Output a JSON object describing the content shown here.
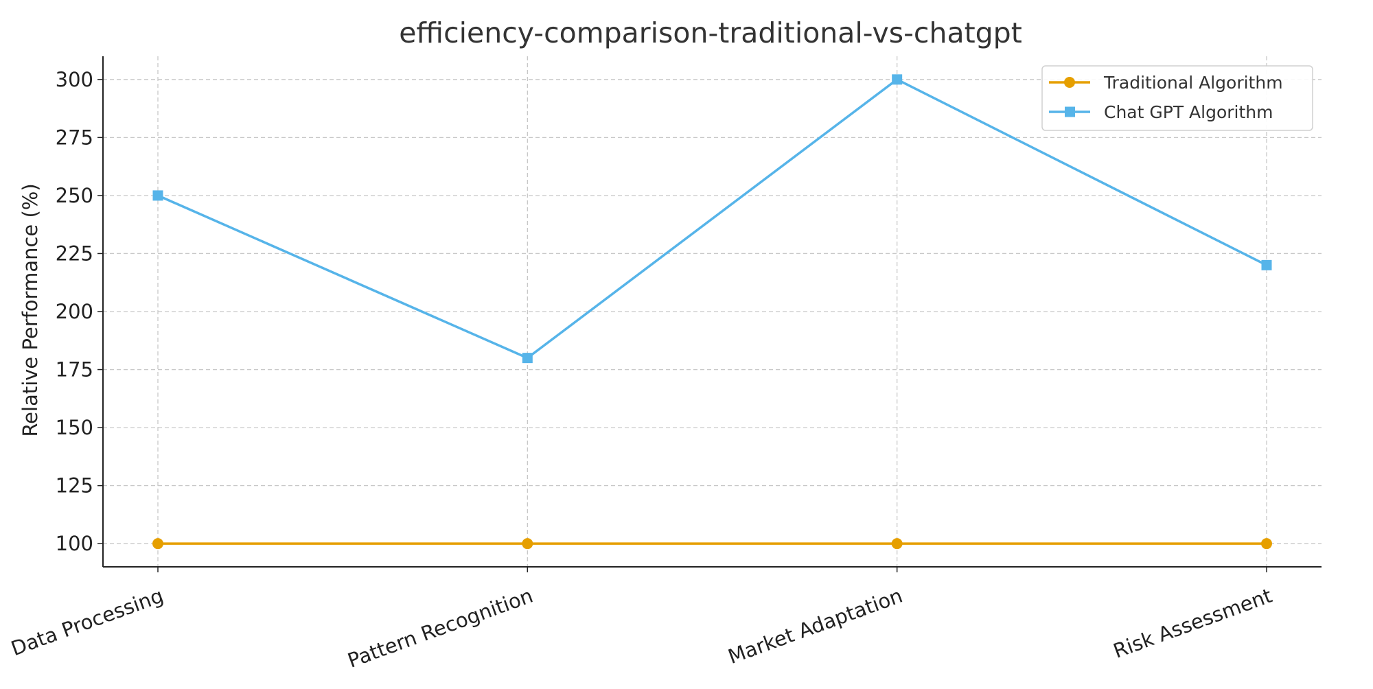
{
  "chart_data": {
    "type": "line",
    "title": "efficiency-comparison-traditional-vs-chatgpt",
    "xlabel": "",
    "ylabel": "Relative Performance (%)",
    "categories": [
      "Data Processing",
      "Pattern Recognition",
      "Market Adaptation",
      "Risk Assessment"
    ],
    "ylim": [
      90,
      310
    ],
    "yticks": [
      100,
      125,
      150,
      175,
      200,
      225,
      250,
      275,
      300
    ],
    "grid": true,
    "legend_position": "top-right",
    "series": [
      {
        "name": "Traditional Algorithm",
        "values": [
          100,
          100,
          100,
          100
        ],
        "color": "#E69F00",
        "marker": "circle"
      },
      {
        "name": "Chat GPT Algorithm",
        "values": [
          250,
          180,
          300,
          220
        ],
        "color": "#56B4E9",
        "marker": "square"
      }
    ]
  }
}
